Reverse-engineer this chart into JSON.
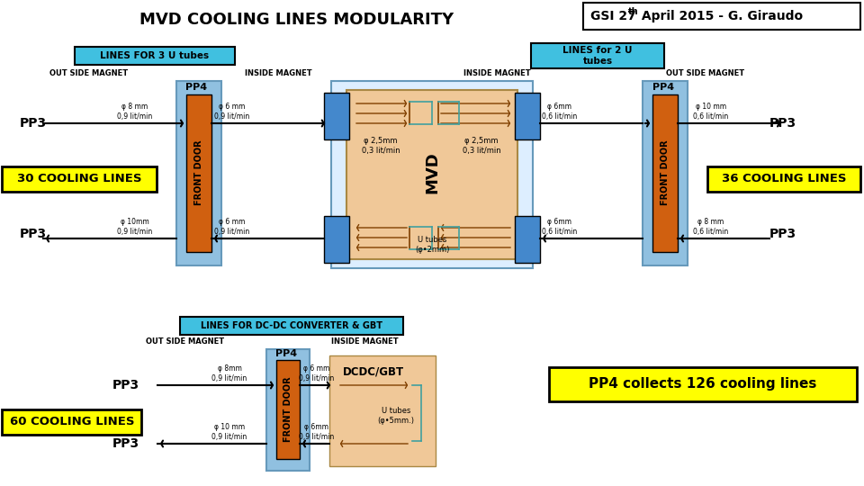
{
  "title": "MVD COOLING LINES MODULARITY",
  "bg_color": "#ffffff",
  "lines_3u_label": "LINES FOR 3 U tubes",
  "lines_2u_label": "LINES for 2 U\ntubes",
  "lines_dcdc_label": "LINES FOR DC-DC CONVERTER & GBT",
  "outside_magnet": "OUT SIDE MAGNET",
  "inside_magnet": "INSIDE MAGNET",
  "pp3": "PP3",
  "pp4": "PP4",
  "front_door": "FRONT DOOR",
  "mvd": "MVD",
  "dcdc_gbt": "DCDC/GBT",
  "30_cooling": "30 COOLING LINES",
  "36_cooling": "36 COOLING LINES",
  "60_cooling": "60 COOLING LINES",
  "pp4_collects": "PP4 collects 126 cooling lines",
  "u_tubes_2mm": "U tubes\n(φ•2mm)",
  "u_tubes_5mm": "U tubes\n(φ•5mm.)",
  "cyan_color": "#40c0e0",
  "orange_door": "#d06010",
  "door_border": "#90c0e0",
  "mvd_bg": "#f0c898",
  "mvd_border": "#90c0e0",
  "blue_block": "#4488cc",
  "yellow": "#ffff00",
  "brown_arrow": "#804000",
  "teal_line": "#40a0a0"
}
